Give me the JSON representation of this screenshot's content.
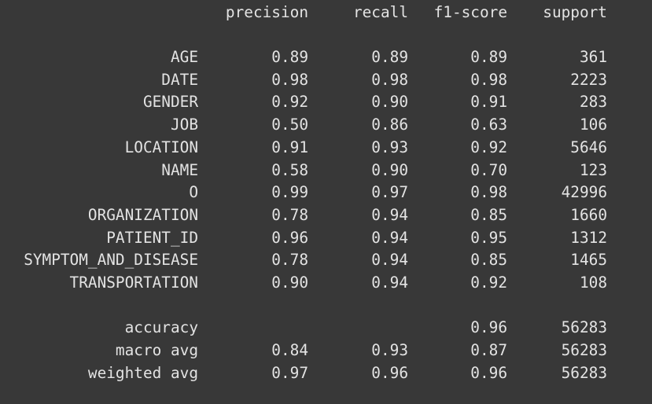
{
  "headers": {
    "precision": "precision",
    "recall": "recall",
    "f1": "f1-score",
    "support": "support"
  },
  "rows": [
    {
      "label": "AGE",
      "precision": "0.89",
      "recall": "0.89",
      "f1": "0.89",
      "support": "361"
    },
    {
      "label": "DATE",
      "precision": "0.98",
      "recall": "0.98",
      "f1": "0.98",
      "support": "2223"
    },
    {
      "label": "GENDER",
      "precision": "0.92",
      "recall": "0.90",
      "f1": "0.91",
      "support": "283"
    },
    {
      "label": "JOB",
      "precision": "0.50",
      "recall": "0.86",
      "f1": "0.63",
      "support": "106"
    },
    {
      "label": "LOCATION",
      "precision": "0.91",
      "recall": "0.93",
      "f1": "0.92",
      "support": "5646"
    },
    {
      "label": "NAME",
      "precision": "0.58",
      "recall": "0.90",
      "f1": "0.70",
      "support": "123"
    },
    {
      "label": "O",
      "precision": "0.99",
      "recall": "0.97",
      "f1": "0.98",
      "support": "42996"
    },
    {
      "label": "ORGANIZATION",
      "precision": "0.78",
      "recall": "0.94",
      "f1": "0.85",
      "support": "1660"
    },
    {
      "label": "PATIENT_ID",
      "precision": "0.96",
      "recall": "0.94",
      "f1": "0.95",
      "support": "1312"
    },
    {
      "label": "SYMPTOM_AND_DISEASE",
      "precision": "0.78",
      "recall": "0.94",
      "f1": "0.85",
      "support": "1465"
    },
    {
      "label": "TRANSPORTATION",
      "precision": "0.90",
      "recall": "0.94",
      "f1": "0.92",
      "support": "108"
    }
  ],
  "summary": [
    {
      "label": "accuracy",
      "precision": "",
      "recall": "",
      "f1": "0.96",
      "support": "56283"
    },
    {
      "label": "macro avg",
      "precision": "0.84",
      "recall": "0.93",
      "f1": "0.87",
      "support": "56283"
    },
    {
      "label": "weighted avg",
      "precision": "0.97",
      "recall": "0.96",
      "f1": "0.96",
      "support": "56283"
    }
  ],
  "colors": {
    "background": "#383838",
    "text": "#e3e3e3"
  }
}
